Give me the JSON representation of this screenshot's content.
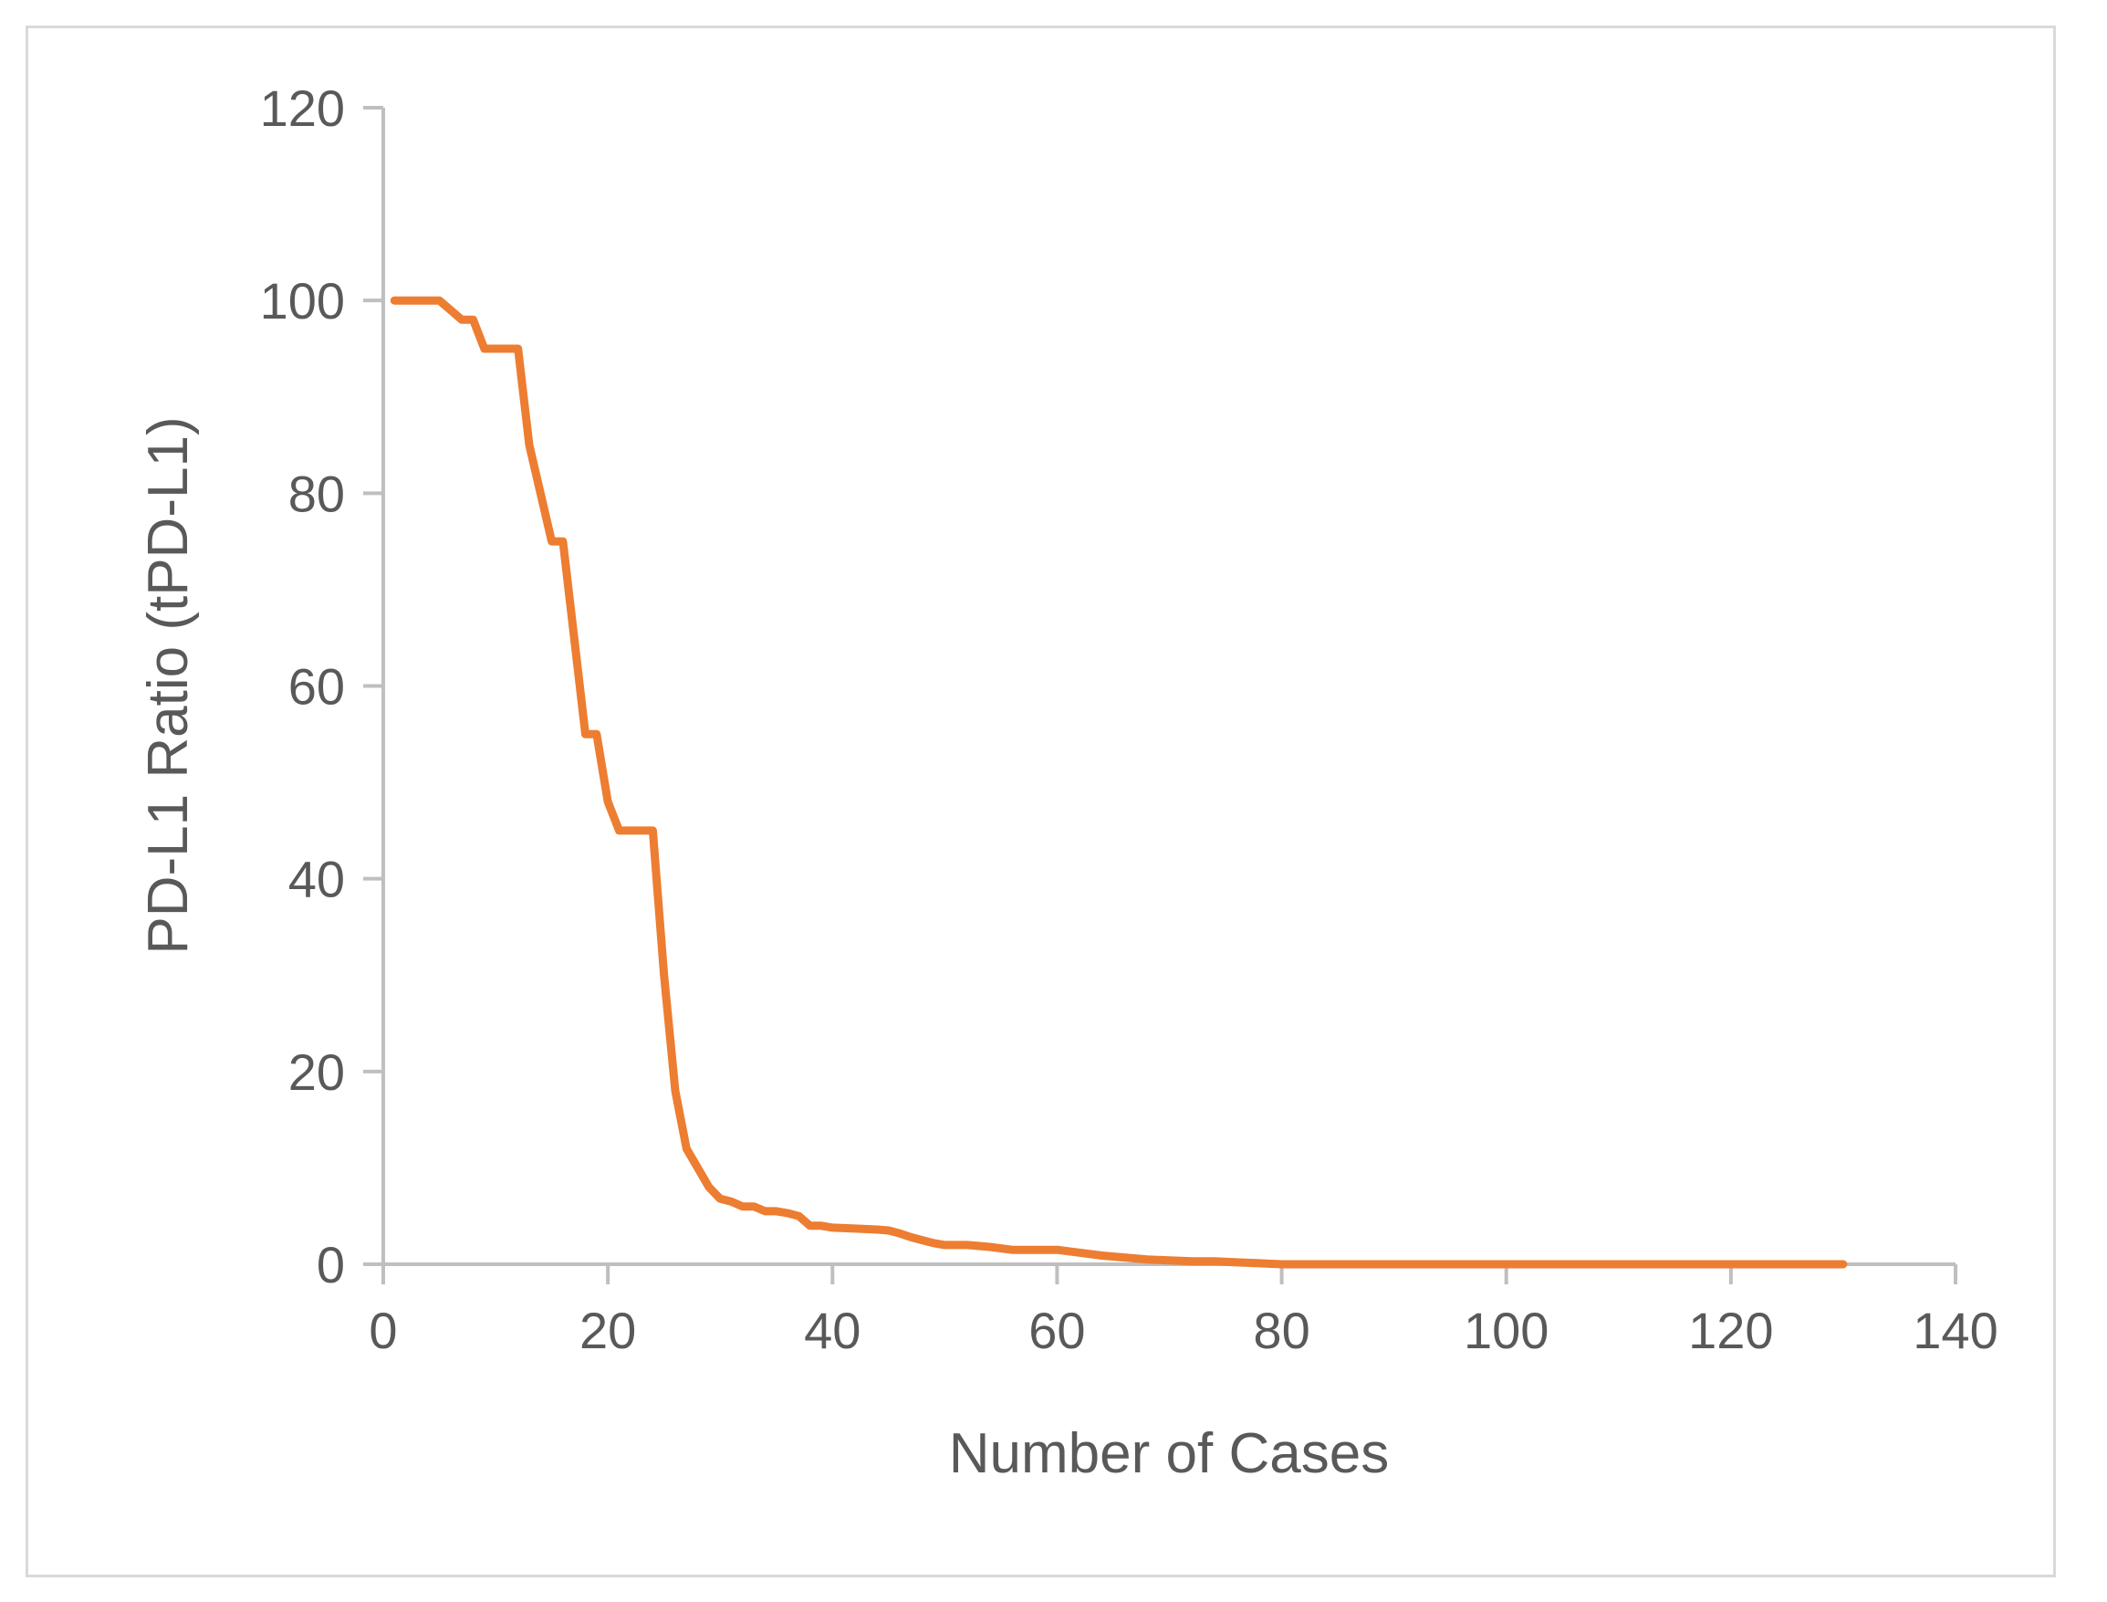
{
  "chart_data": {
    "type": "line",
    "title": "",
    "xlabel": "Number of Cases",
    "ylabel": "PD-L1 Ratio (tPD-L1)",
    "xlim": [
      0,
      140
    ],
    "ylim": [
      0,
      120
    ],
    "xticks": [
      0,
      20,
      40,
      60,
      80,
      100,
      120,
      140
    ],
    "yticks": [
      0,
      20,
      40,
      60,
      80,
      100,
      120
    ],
    "grid": false,
    "legend": "none",
    "colors": {
      "line": "#ED7D31",
      "axis": "#bfbfbf",
      "text": "#595959",
      "frame": "#d9d9d9"
    },
    "series": [
      {
        "x": [
          1,
          2,
          3,
          4,
          5,
          6,
          7,
          8,
          9,
          10,
          11,
          12,
          13,
          14,
          15,
          16,
          17,
          18,
          19,
          20,
          21,
          22,
          23,
          24,
          25,
          26,
          27,
          28,
          29,
          30,
          31,
          32,
          33,
          34,
          35,
          36,
          37,
          38,
          39,
          40,
          42,
          44,
          45,
          46,
          47,
          48,
          49,
          50,
          52,
          54,
          56,
          58,
          60,
          62,
          64,
          66,
          68,
          70,
          72,
          74,
          76,
          78,
          80,
          82,
          84,
          86,
          90,
          95,
          100,
          105,
          110,
          115,
          120,
          125,
          130
        ],
        "values": [
          100,
          100,
          100,
          100,
          100,
          99,
          98,
          98,
          95,
          95,
          95,
          95,
          85,
          80,
          75,
          75,
          65,
          55,
          55,
          48,
          45,
          45,
          45,
          45,
          30,
          18,
          12,
          10,
          8,
          6.8,
          6.5,
          6,
          6,
          5.5,
          5.5,
          5.3,
          5,
          4,
          4,
          3.8,
          3.7,
          3.6,
          3.5,
          3.2,
          2.8,
          2.5,
          2.2,
          2,
          2,
          1.8,
          1.5,
          1.5,
          1.5,
          1.2,
          0.9,
          0.7,
          0.5,
          0.4,
          0.3,
          0.3,
          0.2,
          0.1,
          0,
          0,
          0,
          0,
          0,
          0,
          0,
          0,
          0,
          0,
          0,
          0,
          0
        ]
      }
    ]
  }
}
